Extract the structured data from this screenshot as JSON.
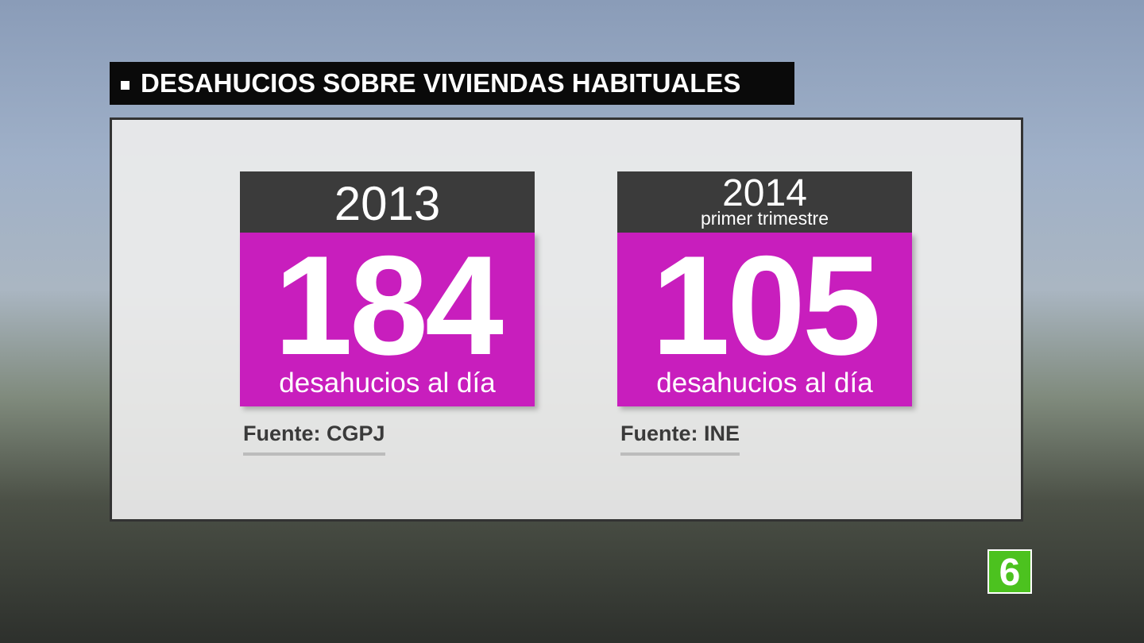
{
  "header": {
    "title": "DESAHUCIOS SOBRE VIVIENDAS HABITUALES"
  },
  "cards": [
    {
      "year": "2013",
      "value": "184",
      "unit": "desahucios al día",
      "source": "Fuente: CGPJ"
    },
    {
      "year": "2014",
      "subtitle": "primer trimestre",
      "value": "105",
      "unit": "desahucios al día",
      "source": "Fuente: INE"
    }
  ],
  "logo": "6"
}
